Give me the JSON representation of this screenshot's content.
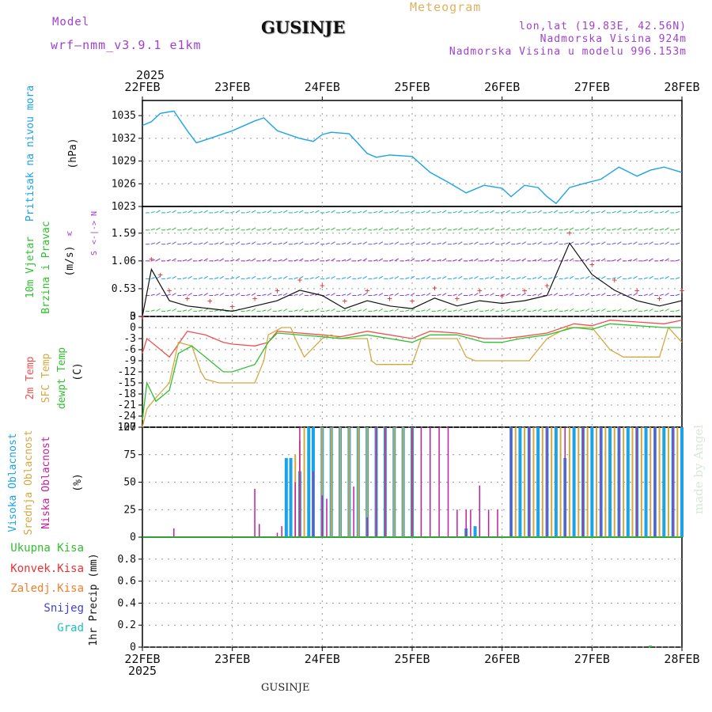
{
  "header": {
    "model_label": "Model",
    "model_run": "wrf–nmm_v3.9.1  e1km",
    "station": "GUSINJE",
    "title": "Meteogram",
    "lonlat": "lon,lat (19.83E, 42.56N)",
    "elevation": "Nadmorska Visina 924m",
    "model_elevation": "Nadmorska Visina u modelu 996.153m",
    "year_top": "2025",
    "year_bottom": "2025",
    "footer_station": "GUSINJE",
    "credit": "made by Angel"
  },
  "colors": {
    "pressure": "#1aa3e8",
    "temp2m": "#f05050",
    "sfc_temp": "#d4a840",
    "dewpoint": "#30c030",
    "high_cloud": "#1aa3e8",
    "mid_cloud": "#d4a840",
    "low_cloud": "#c020a0",
    "total_rain": "#30c030",
    "conv_rain": "#f03030",
    "frz_rain": "#f08030",
    "snow": "#4040e0",
    "graupel": "#20c0c0",
    "wind_speed": "#111111",
    "gust": "#e03030"
  },
  "chart_data": [
    {
      "type": "line",
      "panel": "pressure",
      "ylabel_1": "Pritisak na nivou mora",
      "ylabel_2": "(hPa)",
      "ylim": [
        1023,
        1037
      ],
      "yticks": [
        1023,
        1026,
        1029,
        1032,
        1035
      ],
      "x_dates": [
        "22FEB",
        "23FEB",
        "24FEB",
        "25FEB",
        "26FEB",
        "27FEB",
        "28FEB"
      ],
      "series": [
        {
          "x": [
            0,
            0.1,
            0.2,
            0.35,
            0.5,
            0.6,
            0.75,
            1.0,
            1.25,
            1.35,
            1.5,
            1.75,
            1.9,
            2.0,
            2.1,
            2.3,
            2.5,
            2.6,
            2.75,
            3.0,
            3.2,
            3.4,
            3.6,
            3.8,
            4.0,
            4.1,
            4.25,
            4.4,
            4.5,
            4.6,
            4.75,
            4.9,
            5.1,
            5.3,
            5.5,
            5.65,
            5.8,
            6.0
          ],
          "values": [
            1033.7,
            1034.2,
            1035.3,
            1035.6,
            1033.0,
            1031.4,
            1032.0,
            1033.0,
            1034.3,
            1034.7,
            1033.0,
            1032.0,
            1031.6,
            1032.5,
            1032.8,
            1032.6,
            1030.0,
            1029.5,
            1029.8,
            1029.6,
            1027.5,
            1026.2,
            1024.8,
            1025.8,
            1025.4,
            1024.3,
            1025.8,
            1025.5,
            1024.3,
            1023.4,
            1025.5,
            1026.0,
            1026.6,
            1028.2,
            1027.0,
            1027.8,
            1028.2,
            1027.5
          ]
        }
      ]
    },
    {
      "type": "line",
      "panel": "wind",
      "ylabel_1": "10m Vjetar",
      "ylabel_2": "Brzina i Pravac",
      "ylabel_3": "(m/s)",
      "compass": "N",
      "compass_w": "w",
      "compass_e": "<-|->",
      "compass_s": "S",
      "yticks": [
        0,
        0.53,
        1.06,
        1.59
      ],
      "ylim": [
        0,
        2.1
      ],
      "series": [
        {
          "name": "speed",
          "x": [
            0,
            0.1,
            0.2,
            0.3,
            0.5,
            0.75,
            1.0,
            1.25,
            1.5,
            1.75,
            2.0,
            2.25,
            2.5,
            2.75,
            3.0,
            3.25,
            3.5,
            3.75,
            4.0,
            4.25,
            4.5,
            4.75,
            5.0,
            5.25,
            5.5,
            5.75,
            6.0
          ],
          "values": [
            0,
            0.9,
            0.6,
            0.3,
            0.2,
            0.15,
            0.1,
            0.2,
            0.3,
            0.5,
            0.4,
            0.15,
            0.3,
            0.2,
            0.15,
            0.35,
            0.2,
            0.3,
            0.25,
            0.3,
            0.4,
            1.4,
            0.8,
            0.5,
            0.3,
            0.2,
            0.3
          ]
        },
        {
          "name": "gust",
          "x": [
            0,
            0.1,
            0.2,
            0.3,
            0.5,
            0.75,
            1.0,
            1.25,
            1.5,
            1.75,
            2.0,
            2.25,
            2.5,
            2.75,
            3.0,
            3.25,
            3.5,
            3.75,
            4.0,
            4.25,
            4.5,
            4.75,
            5.0,
            5.25,
            5.5,
            5.75,
            6.0
          ],
          "values": [
            0,
            1.1,
            0.8,
            0.5,
            0.35,
            0.3,
            0.2,
            0.35,
            0.5,
            0.7,
            0.6,
            0.3,
            0.5,
            0.35,
            0.3,
            0.55,
            0.35,
            0.5,
            0.4,
            0.5,
            0.6,
            1.6,
            1.0,
            0.7,
            0.5,
            0.35,
            0.5
          ]
        }
      ]
    },
    {
      "type": "line",
      "panel": "temperature",
      "ylabel_1": "2m Temp",
      "ylabel_2": "SFC Temp",
      "ylabel_3": "dewpt Temp",
      "ylabel_4": "(C)",
      "ylim": [
        -27,
        3
      ],
      "yticks": [
        -27,
        -24,
        -21,
        -18,
        -15,
        -12,
        -9,
        -6,
        -3,
        0,
        3
      ],
      "series": [
        {
          "name": "2m Temp",
          "x": [
            0,
            0.05,
            0.15,
            0.3,
            0.5,
            0.7,
            0.9,
            1.0,
            1.25,
            1.4,
            1.5,
            2.0,
            2.2,
            2.5,
            3.0,
            3.2,
            3.5,
            3.8,
            4.0,
            4.2,
            4.5,
            4.8,
            5.0,
            5.2,
            5.5,
            5.8,
            6.0
          ],
          "values": [
            -7,
            -3,
            -5,
            -8,
            -1,
            -2,
            -4,
            -4.5,
            -5,
            -4,
            -1,
            -2,
            -2.5,
            -1,
            -3,
            -1,
            -1.5,
            -3,
            -3,
            -2.5,
            -1.5,
            1,
            0.5,
            2,
            1.5,
            1,
            2
          ]
        },
        {
          "name": "SFC Temp",
          "x": [
            0,
            0.05,
            0.15,
            0.3,
            0.4,
            0.55,
            0.65,
            0.7,
            0.85,
            1.0,
            1.25,
            1.35,
            1.4,
            1.55,
            1.65,
            1.7,
            1.8,
            2.0,
            2.1,
            2.2,
            2.5,
            2.55,
            2.6,
            2.8,
            3.0,
            3.1,
            3.25,
            3.5,
            3.6,
            3.7,
            4.0,
            4.3,
            4.5,
            4.65,
            4.75,
            5.0,
            5.2,
            5.35,
            5.5,
            5.75,
            5.85,
            6.0
          ],
          "values": [
            -27,
            -22,
            -19,
            -15,
            -4,
            -5,
            -12,
            -14,
            -15,
            -15,
            -15,
            -9,
            -2,
            0,
            0,
            -3,
            -8,
            -3,
            -2,
            -3,
            -3,
            -9,
            -10,
            -10,
            -10,
            -3,
            -3,
            -3,
            -8,
            -9,
            -9,
            -9,
            -3,
            -1,
            0,
            0,
            -6,
            -8,
            -8,
            -8,
            0,
            -4
          ]
        },
        {
          "name": "dewpt Temp",
          "x": [
            0,
            0.05,
            0.15,
            0.3,
            0.4,
            0.55,
            0.7,
            0.9,
            1.0,
            1.25,
            1.4,
            1.5,
            2.0,
            2.2,
            2.5,
            3.0,
            3.2,
            3.5,
            3.8,
            4.0,
            4.2,
            4.5,
            4.8,
            5.0,
            5.2,
            5.5,
            5.8,
            6.0
          ],
          "values": [
            -25,
            -15,
            -20,
            -17,
            -7,
            -5,
            -8,
            -12,
            -12,
            -10,
            -4,
            -1.5,
            -2.5,
            -3,
            -2,
            -4,
            -2,
            -2,
            -4,
            -4,
            -3,
            -2,
            0,
            -0.5,
            1,
            0.5,
            0,
            0
          ]
        }
      ]
    },
    {
      "type": "bar",
      "panel": "clouds",
      "ylabel_1": "Visoka Oblacnost",
      "ylabel_2": "Srednja Oblacnost",
      "ylabel_3": "Niska Oblacnost",
      "ylabel_4": "(%)",
      "ylim": [
        0,
        100
      ],
      "yticks": [
        0,
        25,
        50,
        75,
        100
      ],
      "series": [
        {
          "name": "Visoka Oblacnost",
          "x": [
            1.6,
            1.65,
            1.75,
            1.85,
            1.9,
            2.0,
            2.1,
            2.2,
            2.3,
            2.4,
            2.5,
            2.6,
            2.7,
            2.8,
            2.9,
            3.0,
            3.6,
            3.7,
            4.1,
            4.2,
            4.3,
            4.4,
            4.5,
            4.6,
            4.7,
            4.8,
            4.9,
            5.0,
            5.1,
            5.2,
            5.3,
            5.4,
            5.5,
            5.6,
            5.7,
            5.8,
            5.9,
            6.0
          ],
          "values": [
            72,
            72,
            60,
            100,
            100,
            100,
            100,
            100,
            100,
            100,
            100,
            100,
            100,
            100,
            100,
            100,
            8,
            10,
            100,
            100,
            100,
            100,
            100,
            100,
            72,
            100,
            100,
            100,
            100,
            100,
            100,
            100,
            100,
            100,
            100,
            100,
            100,
            100
          ]
        },
        {
          "name": "Srednja Oblacnost",
          "x": [
            1.7,
            1.75,
            1.8,
            2.0,
            2.1,
            2.2,
            2.3,
            2.4,
            2.5,
            2.6,
            2.7,
            2.8,
            2.9,
            3.0,
            4.15,
            4.25,
            4.35,
            4.45,
            4.55,
            4.65,
            4.75,
            4.85,
            4.95,
            5.05,
            5.15,
            5.25,
            5.35,
            5.45,
            5.55,
            5.65,
            5.75,
            5.85,
            5.95
          ],
          "values": [
            75,
            88,
            100,
            100,
            100,
            100,
            100,
            100,
            100,
            100,
            100,
            100,
            100,
            100,
            100,
            100,
            100,
            100,
            100,
            100,
            100,
            100,
            100,
            100,
            100,
            100,
            100,
            100,
            100,
            100,
            100,
            100,
            100
          ]
        },
        {
          "name": "Niska Oblacnost",
          "x": [
            0.35,
            1.25,
            1.3,
            1.5,
            1.55,
            1.7,
            1.75,
            1.9,
            2.0,
            2.05,
            2.35,
            2.5,
            2.6,
            2.7,
            3.0,
            3.1,
            3.2,
            3.3,
            3.4,
            3.5,
            3.6,
            3.65,
            3.75,
            3.85,
            3.95,
            4.1,
            4.3,
            4.5,
            4.7,
            4.9,
            5.1,
            5.3,
            5.5,
            5.7,
            5.9
          ],
          "values": [
            8,
            44,
            12,
            4,
            10,
            50,
            100,
            60,
            38,
            35,
            46,
            18,
            100,
            100,
            100,
            100,
            100,
            100,
            100,
            25,
            25,
            25,
            47,
            25,
            25,
            100,
            100,
            100,
            100,
            100,
            100,
            100,
            100,
            100,
            100
          ]
        }
      ]
    },
    {
      "type": "bar",
      "panel": "precipitation",
      "ylabel_1": "1hr Precip",
      "ylabel_2": "(mm)",
      "ylim": [
        0,
        1.0
      ],
      "yticks": [
        0,
        0.2,
        0.4,
        0.6,
        0.8
      ],
      "legend": [
        "Ukupna Kisa",
        "Konvek.Kisa",
        "Zaledj.Kisa",
        "Snijeg",
        "Grad"
      ],
      "series": [
        {
          "name": "Ukupna Kisa",
          "x": [
            5.65
          ],
          "values": [
            0.01
          ]
        }
      ]
    }
  ]
}
